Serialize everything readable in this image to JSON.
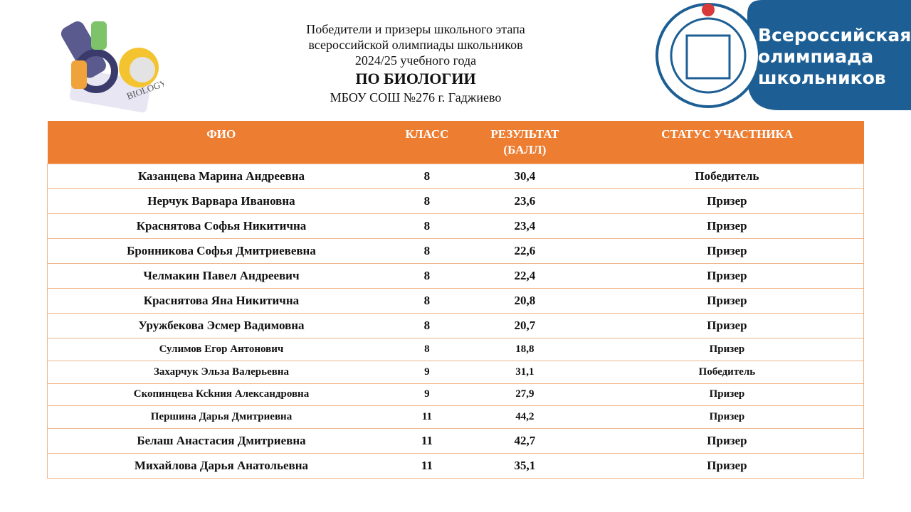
{
  "header": {
    "lines": [
      "Победители и призеры школьного этапа",
      "всероссийской олимпиады школьников",
      "2024/25 учебного года"
    ],
    "subject": "ПО БИОЛОГИИ",
    "school": "МБОУ СОШ №276 г. Гаджиево"
  },
  "illustration": {
    "label": "BIOLOGY"
  },
  "logo": {
    "lines": [
      "Всероссийская",
      "олимпиада",
      "школьников"
    ]
  },
  "table": {
    "columns": [
      "ФИО",
      "КЛАСС",
      "РЕЗУЛЬТАТ (БАЛЛ)",
      "СТАТУС УЧАСТНИКА"
    ],
    "rows": [
      [
        "Казанцева Марина Андреевна",
        "8",
        "30,4",
        "Победитель"
      ],
      [
        "Нерчук Варвара Ивановна",
        "8",
        "23,6",
        "Призер"
      ],
      [
        "Краснятова Софья Никитична",
        "8",
        "23,4",
        "Призер"
      ],
      [
        "Бронникова Софья Дмитриевевна",
        "8",
        "22,6",
        "Призер"
      ],
      [
        "Челмакин Павел Андреевич",
        "8",
        "22,4",
        "Призер"
      ],
      [
        "Краснятова Яна Никитична",
        "8",
        "20,8",
        "Призер"
      ],
      [
        "Уружбекова Эсмер Вадимовна",
        "8",
        "20,7",
        "Призер"
      ],
      [
        "Сулимов Егор Антонович",
        "8",
        "18,8",
        "Призер"
      ],
      [
        "Захарчук Эльза Валерьевна",
        "9",
        "31,1",
        "Победитель"
      ],
      [
        "Скопинцева Ксkния Александровна",
        "9",
        "27,9",
        "Призер"
      ],
      [
        "Першина Дарья Дмитриевна",
        "11",
        "44,2",
        "Призер"
      ],
      [
        "Белаш Анастасия Дмитриевна",
        "11",
        "42,7",
        "Призер"
      ],
      [
        "Михайлова Дарья Анатольевна",
        "11",
        "35,1",
        "Призер"
      ]
    ]
  }
}
